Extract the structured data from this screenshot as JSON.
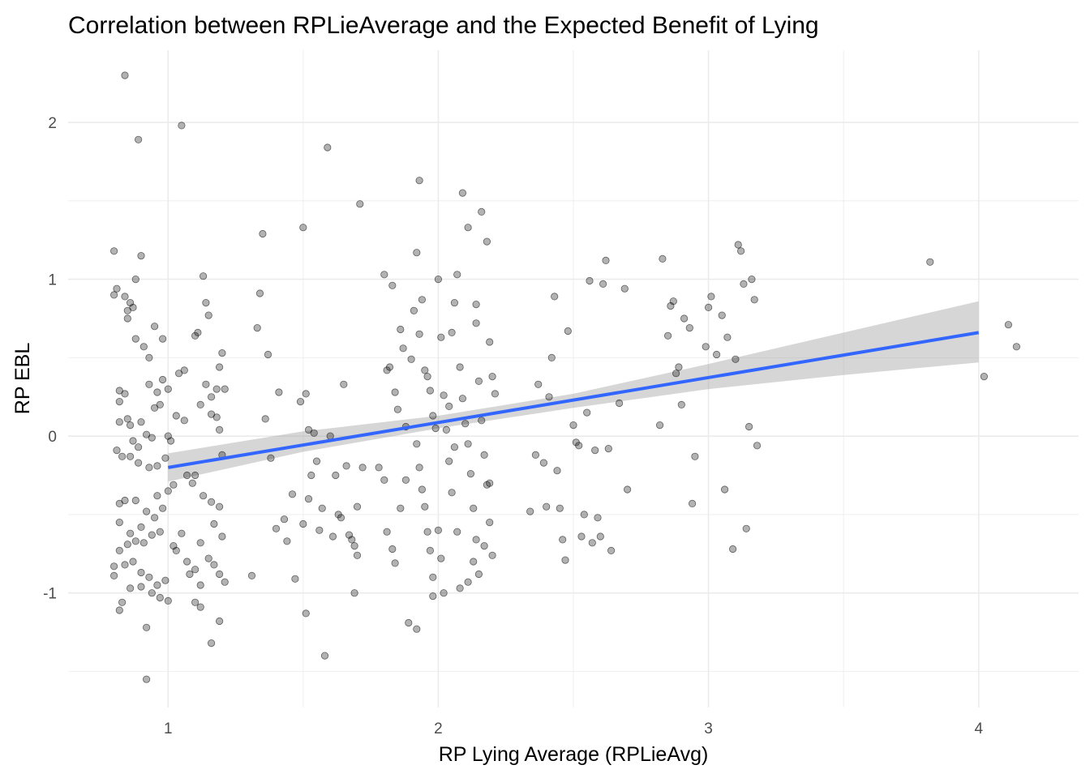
{
  "chart_data": {
    "type": "scatter",
    "title": "Correlation between RPLieAverage and the Expected Benefit of Lying",
    "xlabel": "RP Lying Average (RPLieAvg)",
    "ylabel": "RP EBL",
    "xlim": [
      0.63,
      4.37
    ],
    "ylim": [
      -1.73,
      2.46
    ],
    "x_ticks": [
      1,
      2,
      3,
      4
    ],
    "y_ticks": [
      -1,
      0,
      1,
      2
    ],
    "grid": true,
    "colors": {
      "points": "#000000",
      "fit_line": "#3366ff",
      "ribbon": "#999999",
      "grid": "#ebebeb"
    },
    "fit_line": {
      "x": [
        1,
        4
      ],
      "y": [
        -0.2,
        0.66
      ]
    },
    "confidence_band": {
      "x": [
        1,
        1.5,
        2,
        2.5,
        3,
        3.5,
        4
      ],
      "lower": [
        -0.29,
        -0.1,
        0.05,
        0.18,
        0.3,
        0.39,
        0.47
      ],
      "upper": [
        -0.11,
        0.03,
        0.13,
        0.27,
        0.46,
        0.66,
        0.86
      ]
    },
    "points": [
      [
        0.8,
        0.9
      ],
      [
        0.81,
        0.94
      ],
      [
        0.8,
        1.18
      ],
      [
        0.84,
        0.89
      ],
      [
        0.85,
        0.8
      ],
      [
        0.86,
        0.85
      ],
      [
        0.87,
        0.82
      ],
      [
        0.88,
        1.0
      ],
      [
        0.9,
        1.15
      ],
      [
        0.85,
        0.75
      ],
      [
        0.88,
        0.62
      ],
      [
        0.91,
        0.57
      ],
      [
        0.93,
        0.5
      ],
      [
        0.95,
        0.7
      ],
      [
        0.98,
        0.62
      ],
      [
        0.82,
        0.29
      ],
      [
        0.84,
        0.27
      ],
      [
        0.82,
        0.22
      ],
      [
        0.85,
        0.11
      ],
      [
        0.82,
        0.09
      ],
      [
        0.86,
        0.07
      ],
      [
        0.9,
        0.09
      ],
      [
        0.92,
        0.01
      ],
      [
        0.94,
        -0.01
      ],
      [
        0.87,
        -0.03
      ],
      [
        0.89,
        -0.07
      ],
      [
        0.81,
        -0.09
      ],
      [
        0.83,
        -0.13
      ],
      [
        0.86,
        -0.13
      ],
      [
        0.89,
        -0.17
      ],
      [
        0.93,
        -0.2
      ],
      [
        0.96,
        -0.19
      ],
      [
        0.99,
        -0.14
      ],
      [
        0.82,
        -0.43
      ],
      [
        0.84,
        -0.41
      ],
      [
        0.88,
        -0.41
      ],
      [
        0.92,
        -0.48
      ],
      [
        0.95,
        -0.52
      ],
      [
        0.98,
        -0.46
      ],
      [
        0.82,
        -0.55
      ],
      [
        0.86,
        -0.62
      ],
      [
        0.9,
        -0.58
      ],
      [
        0.94,
        -0.63
      ],
      [
        0.97,
        -0.61
      ],
      [
        0.88,
        -0.67
      ],
      [
        0.91,
        -0.68
      ],
      [
        0.85,
        -0.69
      ],
      [
        0.82,
        -0.73
      ],
      [
        0.8,
        -0.83
      ],
      [
        0.8,
        -0.89
      ],
      [
        0.84,
        -0.82
      ],
      [
        0.87,
        -0.8
      ],
      [
        0.9,
        -0.87
      ],
      [
        0.93,
        -0.9
      ],
      [
        0.96,
        -0.95
      ],
      [
        0.99,
        -0.92
      ],
      [
        0.86,
        -0.97
      ],
      [
        0.9,
        -0.96
      ],
      [
        0.83,
        -1.06
      ],
      [
        0.82,
        -1.11
      ],
      [
        0.94,
        -1.0
      ],
      [
        0.97,
        -1.03
      ],
      [
        1.0,
        -1.05
      ],
      [
        0.92,
        -1.22
      ],
      [
        0.92,
        -1.55
      ],
      [
        0.84,
        2.3
      ],
      [
        0.89,
        1.89
      ],
      [
        0.96,
        0.28
      ],
      [
        0.98,
        0.36
      ],
      [
        0.93,
        0.33
      ],
      [
        0.95,
        0.18
      ],
      [
        0.97,
        0.2
      ],
      [
        1.0,
        0.3
      ],
      [
        0.96,
        -0.38
      ],
      [
        1.0,
        -0.35
      ],
      [
        1.02,
        -0.31
      ],
      [
        1.0,
        0.0
      ],
      [
        1.01,
        -0.03
      ],
      [
        1.05,
        1.98
      ],
      [
        1.04,
        0.4
      ],
      [
        1.06,
        0.42
      ],
      [
        1.03,
        0.13
      ],
      [
        1.06,
        0.1
      ],
      [
        1.07,
        -0.25
      ],
      [
        1.09,
        -0.3
      ],
      [
        1.02,
        -0.7
      ],
      [
        1.03,
        -0.73
      ],
      [
        1.05,
        -0.62
      ],
      [
        1.07,
        -0.8
      ],
      [
        1.08,
        -0.88
      ],
      [
        1.1,
        -0.85
      ],
      [
        1.12,
        -0.95
      ],
      [
        1.1,
        -1.06
      ],
      [
        1.12,
        -1.09
      ],
      [
        1.13,
        1.02
      ],
      [
        1.1,
        0.64
      ],
      [
        1.11,
        0.66
      ],
      [
        1.14,
        0.85
      ],
      [
        1.15,
        0.77
      ],
      [
        1.16,
        0.25
      ],
      [
        1.18,
        0.3
      ],
      [
        1.16,
        0.14
      ],
      [
        1.18,
        0.12
      ],
      [
        1.19,
        0.44
      ],
      [
        1.2,
        0.53
      ],
      [
        1.21,
        0.3
      ],
      [
        1.19,
        0.04
      ],
      [
        1.2,
        -0.12
      ],
      [
        1.13,
        -0.38
      ],
      [
        1.16,
        -0.42
      ],
      [
        1.19,
        -0.45
      ],
      [
        1.17,
        -0.56
      ],
      [
        1.2,
        -0.64
      ],
      [
        1.12,
        -0.68
      ],
      [
        1.15,
        -0.78
      ],
      [
        1.17,
        -0.82
      ],
      [
        1.19,
        -0.88
      ],
      [
        1.21,
        -0.93
      ],
      [
        1.16,
        -1.32
      ],
      [
        1.19,
        -1.18
      ],
      [
        1.1,
        -0.25
      ],
      [
        1.14,
        0.33
      ],
      [
        1.12,
        0.2
      ],
      [
        1.31,
        -0.89
      ],
      [
        1.33,
        0.69
      ],
      [
        1.34,
        0.91
      ],
      [
        1.35,
        1.29
      ],
      [
        1.36,
        0.11
      ],
      [
        1.37,
        0.52
      ],
      [
        1.38,
        -0.14
      ],
      [
        1.4,
        -0.59
      ],
      [
        1.41,
        0.28
      ],
      [
        1.43,
        -0.53
      ],
      [
        1.44,
        -0.67
      ],
      [
        1.46,
        -0.37
      ],
      [
        1.47,
        -0.91
      ],
      [
        1.49,
        0.22
      ],
      [
        1.5,
        1.33
      ],
      [
        1.51,
        0.27
      ],
      [
        1.5,
        -0.56
      ],
      [
        1.51,
        -1.13
      ],
      [
        1.52,
        -0.4
      ],
      [
        1.52,
        0.04
      ],
      [
        1.53,
        -0.25
      ],
      [
        1.54,
        0.02
      ],
      [
        1.55,
        -0.16
      ],
      [
        1.56,
        -0.6
      ],
      [
        1.57,
        -0.46
      ],
      [
        1.58,
        -1.4
      ],
      [
        1.59,
        1.84
      ],
      [
        1.6,
        0.0
      ],
      [
        1.61,
        -0.64
      ],
      [
        1.62,
        -0.25
      ],
      [
        1.63,
        -0.5
      ],
      [
        1.64,
        -0.52
      ],
      [
        1.65,
        0.33
      ],
      [
        1.66,
        -0.19
      ],
      [
        1.67,
        -0.63
      ],
      [
        1.68,
        -0.66
      ],
      [
        1.69,
        -0.7
      ],
      [
        1.7,
        -0.45
      ],
      [
        1.71,
        1.48
      ],
      [
        1.72,
        -0.2
      ],
      [
        1.7,
        -0.76
      ],
      [
        1.69,
        -1.0
      ],
      [
        1.78,
        -0.2
      ],
      [
        1.8,
        1.03
      ],
      [
        1.81,
        0.42
      ],
      [
        1.82,
        0.44
      ],
      [
        1.83,
        0.96
      ],
      [
        1.84,
        0.28
      ],
      [
        1.85,
        0.17
      ],
      [
        1.86,
        0.68
      ],
      [
        1.87,
        0.56
      ],
      [
        1.88,
        0.06
      ],
      [
        1.8,
        -0.28
      ],
      [
        1.81,
        -0.61
      ],
      [
        1.83,
        -0.72
      ],
      [
        1.84,
        -0.81
      ],
      [
        1.86,
        -0.46
      ],
      [
        1.88,
        -0.28
      ],
      [
        1.89,
        -1.19
      ],
      [
        1.9,
        0.49
      ],
      [
        1.91,
        0.8
      ],
      [
        1.92,
        1.17
      ],
      [
        1.93,
        0.65
      ],
      [
        1.94,
        0.87
      ],
      [
        1.95,
        0.42
      ],
      [
        1.96,
        0.38
      ],
      [
        1.97,
        0.29
      ],
      [
        1.98,
        0.13
      ],
      [
        1.99,
        0.05
      ],
      [
        1.92,
        -0.05
      ],
      [
        1.93,
        -0.2
      ],
      [
        1.94,
        -0.34
      ],
      [
        1.95,
        -0.45
      ],
      [
        1.96,
        -0.61
      ],
      [
        1.97,
        -0.73
      ],
      [
        1.92,
        -1.23
      ],
      [
        1.93,
        1.63
      ],
      [
        1.98,
        -0.9
      ],
      [
        1.98,
        -1.02
      ],
      [
        2.0,
        1.0
      ],
      [
        2.01,
        0.63
      ],
      [
        2.02,
        0.26
      ],
      [
        2.03,
        0.04
      ],
      [
        2.04,
        -0.16
      ],
      [
        2.05,
        -0.36
      ],
      [
        2.0,
        -0.6
      ],
      [
        2.01,
        -0.78
      ],
      [
        2.02,
        -1.0
      ],
      [
        2.05,
        0.66
      ],
      [
        2.06,
        0.85
      ],
      [
        2.07,
        1.03
      ],
      [
        2.08,
        0.44
      ],
      [
        2.09,
        0.24
      ],
      [
        2.1,
        0.08
      ],
      [
        2.11,
        -0.05
      ],
      [
        2.12,
        -0.24
      ],
      [
        2.13,
        -0.46
      ],
      [
        2.14,
        -0.66
      ],
      [
        2.15,
        -0.88
      ],
      [
        2.09,
        1.55
      ],
      [
        2.11,
        1.33
      ],
      [
        2.14,
        0.72
      ],
      [
        2.15,
        0.35
      ],
      [
        2.16,
        0.1
      ],
      [
        2.17,
        -0.12
      ],
      [
        2.18,
        -0.31
      ],
      [
        2.19,
        -0.55
      ],
      [
        2.2,
        -0.76
      ],
      [
        2.16,
        1.43
      ],
      [
        2.18,
        1.24
      ],
      [
        2.14,
        0.84
      ],
      [
        2.19,
        0.6
      ],
      [
        2.2,
        0.38
      ],
      [
        2.21,
        0.27
      ],
      [
        2.19,
        -0.3
      ],
      [
        2.17,
        -0.7
      ],
      [
        2.13,
        -0.8
      ],
      [
        2.11,
        -0.93
      ],
      [
        2.08,
        -0.97
      ],
      [
        2.07,
        -0.61
      ],
      [
        2.06,
        -0.07
      ],
      [
        2.04,
        0.19
      ],
      [
        2.34,
        -0.48
      ],
      [
        2.36,
        -0.12
      ],
      [
        2.37,
        0.33
      ],
      [
        2.39,
        -0.17
      ],
      [
        2.4,
        -0.45
      ],
      [
        2.41,
        0.25
      ],
      [
        2.42,
        0.5
      ],
      [
        2.43,
        0.89
      ],
      [
        2.44,
        -0.22
      ],
      [
        2.45,
        -0.46
      ],
      [
        2.46,
        -0.66
      ],
      [
        2.47,
        -0.79
      ],
      [
        2.48,
        0.67
      ],
      [
        2.5,
        0.07
      ],
      [
        2.51,
        -0.04
      ],
      [
        2.52,
        -0.06
      ],
      [
        2.53,
        -0.64
      ],
      [
        2.54,
        -0.5
      ],
      [
        2.55,
        0.15
      ],
      [
        2.56,
        0.99
      ],
      [
        2.57,
        -0.68
      ],
      [
        2.58,
        -0.09
      ],
      [
        2.59,
        -0.52
      ],
      [
        2.6,
        -0.64
      ],
      [
        2.61,
        0.97
      ],
      [
        2.62,
        1.12
      ],
      [
        2.63,
        -0.08
      ],
      [
        2.64,
        -0.73
      ],
      [
        2.67,
        0.21
      ],
      [
        2.69,
        0.94
      ],
      [
        2.7,
        -0.34
      ],
      [
        2.82,
        0.07
      ],
      [
        2.83,
        1.13
      ],
      [
        2.85,
        0.64
      ],
      [
        2.86,
        0.83
      ],
      [
        2.87,
        0.86
      ],
      [
        2.88,
        0.4
      ],
      [
        2.89,
        0.44
      ],
      [
        2.9,
        0.2
      ],
      [
        2.91,
        0.75
      ],
      [
        2.93,
        0.69
      ],
      [
        2.94,
        -0.43
      ],
      [
        2.95,
        -0.13
      ],
      [
        2.99,
        0.57
      ],
      [
        3.0,
        0.82
      ],
      [
        3.01,
        0.89
      ],
      [
        3.03,
        0.52
      ],
      [
        3.05,
        0.77
      ],
      [
        3.06,
        -0.34
      ],
      [
        3.07,
        0.63
      ],
      [
        3.09,
        -0.72
      ],
      [
        3.1,
        0.49
      ],
      [
        3.11,
        1.22
      ],
      [
        3.12,
        1.18
      ],
      [
        3.13,
        0.97
      ],
      [
        3.14,
        -0.59
      ],
      [
        3.15,
        0.06
      ],
      [
        3.16,
        1.0
      ],
      [
        3.17,
        0.87
      ],
      [
        3.18,
        -0.06
      ],
      [
        3.82,
        1.11
      ],
      [
        4.02,
        0.38
      ],
      [
        4.11,
        0.71
      ],
      [
        4.14,
        0.57
      ]
    ]
  }
}
